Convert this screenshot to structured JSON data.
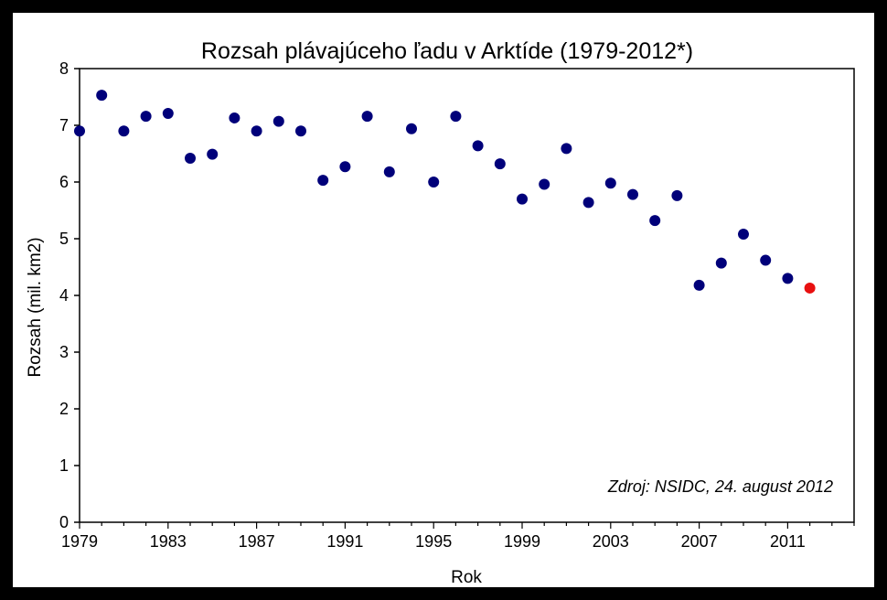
{
  "chart_data": {
    "type": "scatter",
    "title": "Rozsah plávajúceho ľadu v Arktíde (1979-2012*)",
    "xlabel": "Rok",
    "ylabel": "Rozsah (mil. km2)",
    "xlim": [
      1979,
      2014
    ],
    "ylim": [
      0,
      8
    ],
    "x_ticks": [
      1979,
      1983,
      1987,
      1991,
      1995,
      1999,
      2003,
      2007,
      2011
    ],
    "y_ticks": [
      0,
      1,
      2,
      3,
      4,
      5,
      6,
      7,
      8
    ],
    "grid": false,
    "annotation": "Zdroj: NSIDC, 24. august 2012",
    "series": [
      {
        "color": "#00007a",
        "x": [
          1979,
          1980,
          1981,
          1982,
          1983,
          1984,
          1985,
          1986,
          1987,
          1988,
          1989,
          1990,
          1991,
          1992,
          1993,
          1994,
          1995,
          1996,
          1997,
          1998,
          1999,
          2000,
          2001,
          2002,
          2003,
          2004,
          2005,
          2006,
          2007,
          2008,
          2009,
          2010,
          2011
        ],
        "y": [
          6.9,
          7.53,
          6.9,
          7.16,
          7.21,
          6.42,
          6.49,
          7.13,
          6.9,
          7.07,
          6.9,
          6.03,
          6.27,
          7.16,
          6.18,
          6.94,
          6.0,
          7.16,
          6.64,
          6.32,
          5.7,
          5.96,
          6.59,
          5.64,
          5.98,
          5.78,
          5.32,
          5.76,
          4.18,
          4.57,
          5.08,
          4.62,
          4.3
        ]
      },
      {
        "color": "#e81010",
        "x": [
          2012
        ],
        "y": [
          4.13
        ]
      }
    ]
  }
}
